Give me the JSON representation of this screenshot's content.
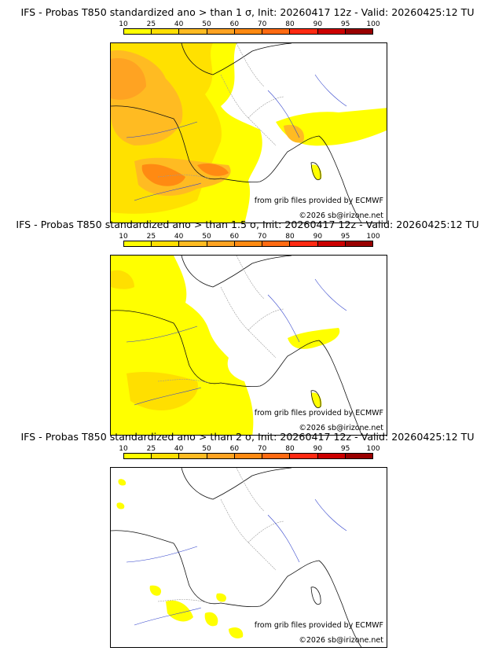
{
  "colorbar": {
    "ticks": [
      "10",
      "25",
      "40",
      "50",
      "60",
      "70",
      "80",
      "90",
      "95",
      "100"
    ],
    "colors": [
      "#ffff00",
      "#ffdf00",
      "#ffbb22",
      "#ffa322",
      "#ff8a12",
      "#ff6a12",
      "#ff2a12",
      "#cc0000",
      "#990000"
    ]
  },
  "credits": {
    "grib": "from grib files provided by ECMWF",
    "copyright": "©2026 sb@irizone.net"
  },
  "panels": [
    {
      "title": "IFS - Probas T850  standardized ano > than 1 σ, Init: 20260417 12z - Valid: 20260425:12 TU"
    },
    {
      "title": "IFS - Probas T850  standardized ano > than 1.5 σ, Init: 20260417 12z - Valid: 20260425:12 TU"
    },
    {
      "title": "IFS - Probas T850  standardized ano > than 2 σ, Init: 20260417 12z - Valid: 20260425:12 TU"
    }
  ]
}
